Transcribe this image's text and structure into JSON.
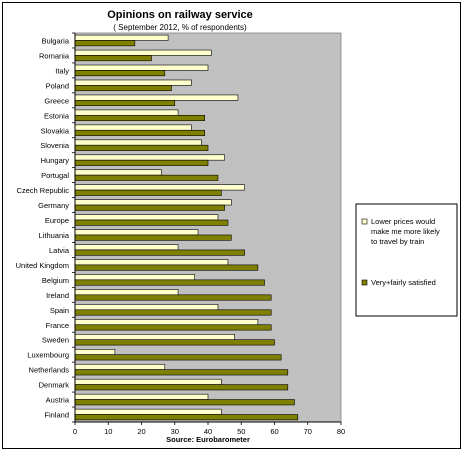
{
  "chart_data": {
    "type": "bar",
    "orientation": "horizontal",
    "title": "Opinions on railway service",
    "subtitle": "( September 2012, % of respondents)",
    "xlabel": "Source: Eurobarometer",
    "ylabel": "",
    "xlim": [
      0,
      80
    ],
    "xticks": [
      0,
      10,
      20,
      30,
      40,
      50,
      60,
      70,
      80
    ],
    "grid": false,
    "legend_position": "right",
    "categories": [
      "Bulgaria",
      "Romania",
      "Italy",
      "Poland",
      "Greece",
      "Estonia",
      "Slovakia",
      "Slovenia",
      "Hungary",
      "Portugal",
      "Czech Republic",
      "Germany",
      "Europe",
      "Lithuania",
      "Latvia",
      "United Kingdom",
      "Belgium",
      "Ireland",
      "Spain",
      "France",
      "Sweden",
      "Luxembourg",
      "Netherlands",
      "Denmark",
      "Austria",
      "Finland"
    ],
    "series": [
      {
        "name": "Lower prices would make me more likely to travel by train",
        "legend_lines": [
          "Lower prices would",
          "make me more likely",
          "to travel by train"
        ],
        "color": "#ffffcc",
        "values": [
          28,
          41,
          40,
          35,
          49,
          31,
          35,
          38,
          45,
          26,
          51,
          47,
          43,
          37,
          31,
          46,
          36,
          31,
          43,
          55,
          48,
          12,
          27,
          44,
          40,
          44
        ]
      },
      {
        "name": "Very+fairly satisfied",
        "legend_lines": [
          "Very+fairly satisfied"
        ],
        "color": "#808000",
        "values": [
          18,
          23,
          27,
          29,
          30,
          39,
          39,
          40,
          40,
          43,
          44,
          45,
          46,
          47,
          51,
          55,
          57,
          59,
          59,
          59,
          60,
          62,
          64,
          64,
          66,
          67
        ]
      }
    ],
    "colors": {
      "plot_background": "#c0c0c0",
      "bar_outline": "#000000"
    }
  }
}
